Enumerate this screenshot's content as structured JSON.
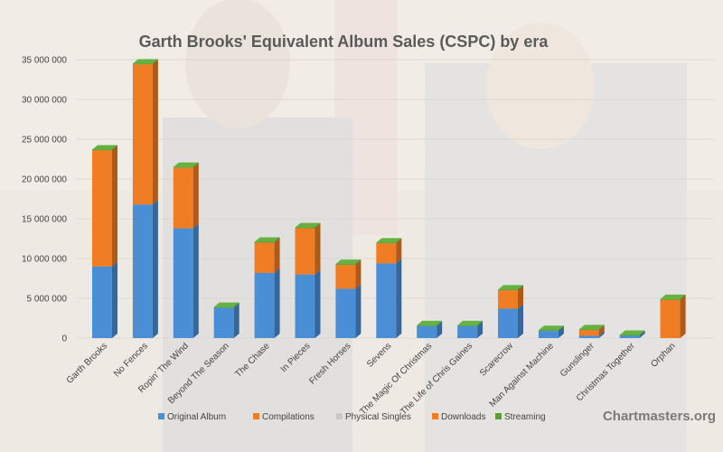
{
  "colors": {
    "background_wash": "#f2efe9",
    "original_album": "#4a8fd6",
    "compilations": "#f07d24",
    "physical_singles": "#c9c9c9",
    "downloads": "#f07d24",
    "streaming": "#5a9e3a"
  },
  "chart_data": {
    "type": "bar",
    "stacked": true,
    "title": "Garth Brooks' Equivalent Album Sales (CSPC) by era",
    "categories": [
      "Garth Brooks",
      "No Fences",
      "Ropin' The Wind",
      "Beyond The Season",
      "The Chase",
      "In Pieces",
      "Fresh Horses",
      "Sevens",
      "The Magic Of Christmas",
      "The Life of Chris Gaines",
      "Scarecrow",
      "Man Against Machine",
      "Gunslinger",
      "Christmas Together",
      "Orphan"
    ],
    "ylim": [
      0,
      35000000
    ],
    "yticks": [
      "0",
      "5 000 000",
      "10 000 000",
      "15 000 000",
      "20 000 000",
      "25 000 000",
      "30 000 000",
      "35 000 000"
    ],
    "ytick_values": [
      0,
      5000000,
      10000000,
      15000000,
      20000000,
      25000000,
      30000000,
      35000000
    ],
    "grid": true,
    "legend_position": "bottom",
    "series": [
      {
        "name": "Original Album",
        "color": "#4a8fd6",
        "values": [
          9000000,
          16800000,
          13800000,
          3800000,
          8200000,
          8000000,
          6200000,
          9400000,
          1500000,
          1500000,
          3700000,
          900000,
          300000,
          300000,
          0
        ]
      },
      {
        "name": "Compilations",
        "color": "#f07d24",
        "values": [
          14600000,
          17600000,
          7600000,
          0,
          3800000,
          5800000,
          3000000,
          2500000,
          0,
          0,
          2300000,
          0,
          0,
          0,
          0
        ]
      },
      {
        "name": "Physical Singles",
        "color": "#c9c9c9",
        "values": [
          0,
          0,
          0,
          0,
          0,
          0,
          0,
          0,
          0,
          0,
          0,
          0,
          0,
          0,
          0
        ]
      },
      {
        "name": "Downloads",
        "color": "#f07d24",
        "values": [
          0,
          0,
          0,
          0,
          0,
          0,
          0,
          0,
          0,
          0,
          0,
          0,
          700000,
          0,
          4800000
        ]
      },
      {
        "name": "Streaming",
        "color": "#5a9e3a",
        "values": [
          100000,
          100000,
          100000,
          100000,
          100000,
          100000,
          100000,
          100000,
          100000,
          100000,
          100000,
          100000,
          100000,
          100000,
          100000
        ]
      }
    ]
  },
  "watermark": {
    "text": "Chartmasters.org"
  }
}
